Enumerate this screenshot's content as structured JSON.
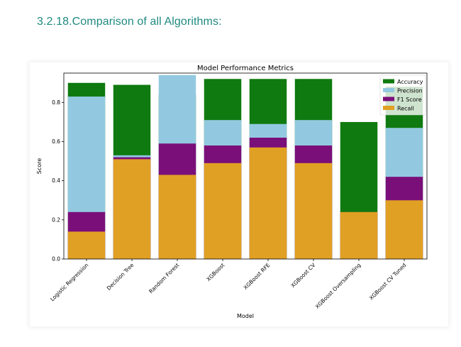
{
  "heading": "3.2.18.Comparison of all Algorithms:",
  "chart_data": {
    "type": "bar",
    "layout": "overlapping",
    "title": "Model Performance Metrics",
    "xlabel": "Model",
    "ylabel": "Score",
    "ylim": [
      0,
      0.95
    ],
    "yticks": [
      "0.0",
      "0.2",
      "0.4",
      "0.6",
      "0.8"
    ],
    "legend_position": "top-right",
    "grid": false,
    "categories": [
      "Logistic Regression",
      "Decision Tree",
      "Random Forest",
      "XGBoost",
      "XGBoost RFE",
      "XGBoost CV",
      "XGBoost Oversampling",
      "XGBoost CV Tuned"
    ],
    "series": [
      {
        "name": "Accuracy",
        "color": "#0f7a0f",
        "values": [
          0.9,
          0.89,
          0.84,
          0.92,
          0.92,
          0.92,
          0.7,
          0.88
        ]
      },
      {
        "name": "Precision",
        "color": "#93c9e0",
        "values": [
          0.83,
          0.53,
          0.94,
          0.71,
          0.69,
          0.71,
          0.0,
          0.67
        ]
      },
      {
        "name": "F1 Score",
        "color": "#7a0f7a",
        "values": [
          0.24,
          0.52,
          0.59,
          0.58,
          0.62,
          0.58,
          0.24,
          0.42
        ]
      },
      {
        "name": "Recall",
        "color": "#e0a024",
        "values": [
          0.14,
          0.51,
          0.43,
          0.49,
          0.57,
          0.49,
          0.24,
          0.3
        ]
      }
    ]
  }
}
